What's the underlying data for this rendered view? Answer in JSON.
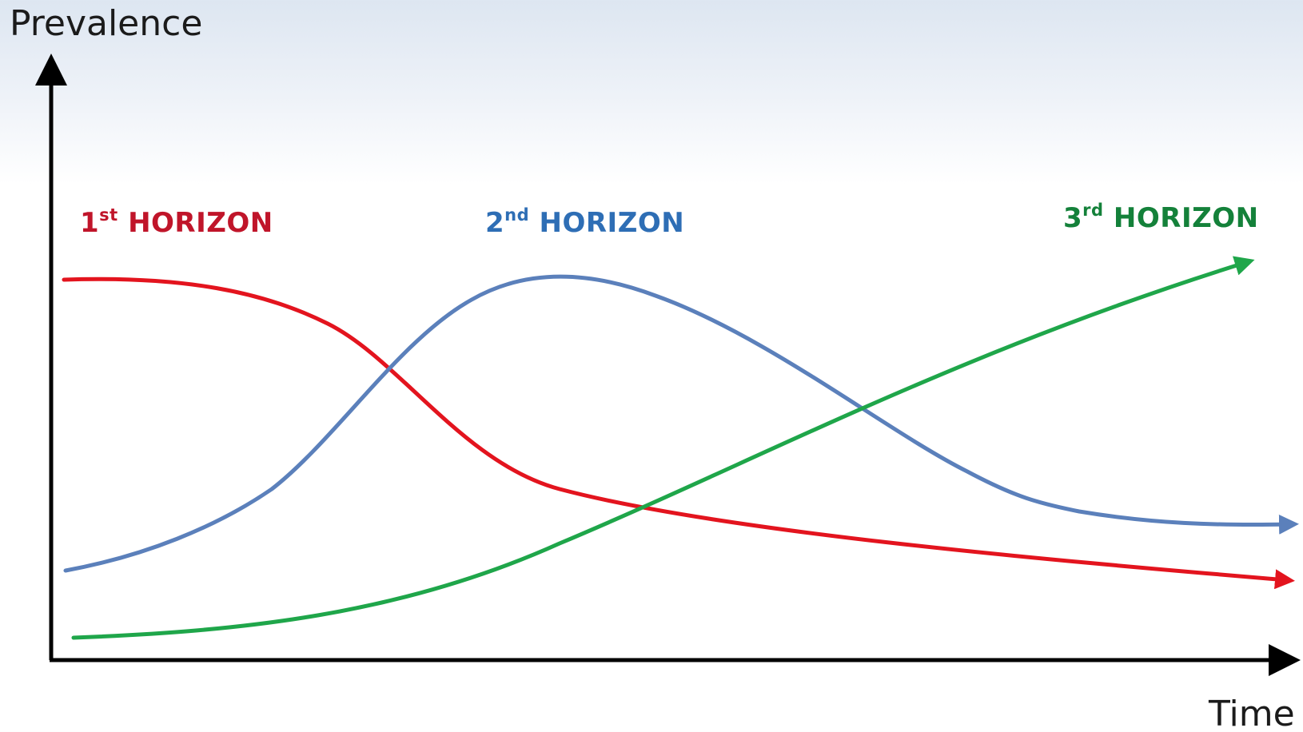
{
  "axes": {
    "y_label": "Prevalence",
    "x_label": "Time"
  },
  "series": [
    {
      "number": "1",
      "ordinal_suffix": "st",
      "name": "HORIZON",
      "color": "#e3141e",
      "label_color": "#c0152a",
      "trend": "declining"
    },
    {
      "number": "2",
      "ordinal_suffix": "nd",
      "name": "HORIZON",
      "color": "#5b80bb",
      "label_color": "#2e6eb5",
      "trend": "rise-and-fall"
    },
    {
      "number": "3",
      "ordinal_suffix": "rd",
      "name": "HORIZON",
      "color": "#1fa64a",
      "label_color": "#14813a",
      "trend": "rising"
    }
  ],
  "colors": {
    "axis": "#000000",
    "background_top": "#dde6f1",
    "background_bottom": "#ffffff"
  }
}
